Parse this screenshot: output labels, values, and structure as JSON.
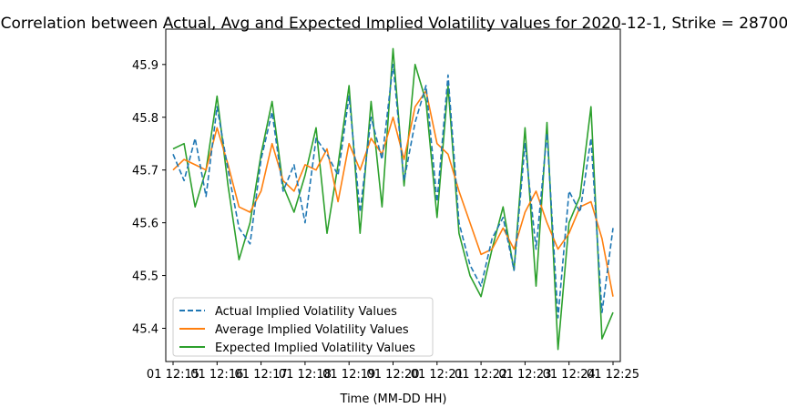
{
  "chart_data": {
    "type": "line",
    "title": "Correlation between Actual, Avg and Expected Implied Volatility values for 2020-12-1, Strike = 28700",
    "xlabel": "Time (MM-DD HH)",
    "ylabel": "",
    "x_tick_labels": [
      "01 12:15",
      "01 12:16",
      "01 12:17",
      "01 12:18",
      "01 12:19",
      "01 12:20",
      "01 12:21",
      "01 12:22",
      "01 12:23",
      "01 12:24",
      "01 12:25"
    ],
    "xlim": [
      "2020-12-01 12:15",
      "2020-12-01 12:25"
    ],
    "ylim": [
      45.337,
      45.967
    ],
    "y_ticks": [
      45.4,
      45.5,
      45.6,
      45.7,
      45.8,
      45.9
    ],
    "grid": false,
    "legend": {
      "position": "lower-left"
    },
    "series": [
      {
        "name": "Actual Implied Volatility Values",
        "color": "#1f77b4",
        "style": "dashed",
        "x": [
          "2020-12-01 12:15",
          "2020-12-01 12:15:15",
          "2020-12-01 12:15:30",
          "2020-12-01 12:15:45",
          "2020-12-01 12:16",
          "2020-12-01 12:16:15",
          "2020-12-01 12:16:30",
          "2020-12-01 12:16:45",
          "2020-12-01 12:17",
          "2020-12-01 12:17:15",
          "2020-12-01 12:17:30",
          "2020-12-01 12:17:45",
          "2020-12-01 12:18",
          "2020-12-01 12:18:15",
          "2020-12-01 12:18:30",
          "2020-12-01 12:18:45",
          "2020-12-01 12:19",
          "2020-12-01 12:19:15",
          "2020-12-01 12:19:30",
          "2020-12-01 12:19:45",
          "2020-12-01 12:20",
          "2020-12-01 12:20:15",
          "2020-12-01 12:20:30",
          "2020-12-01 12:20:45",
          "2020-12-01 12:21",
          "2020-12-01 12:21:15",
          "2020-12-01 12:21:30",
          "2020-12-01 12:21:45",
          "2020-12-01 12:22",
          "2020-12-01 12:22:15",
          "2020-12-01 12:22:30",
          "2020-12-01 12:22:45",
          "2020-12-01 12:23",
          "2020-12-01 12:23:15",
          "2020-12-01 12:23:30",
          "2020-12-01 12:23:45",
          "2020-12-01 12:24",
          "2020-12-01 12:24:15",
          "2020-12-01 12:24:30",
          "2020-12-01 12:24:45",
          "2020-12-01 12:25"
        ],
        "y": [
          45.73,
          45.68,
          45.76,
          45.65,
          45.82,
          45.7,
          45.59,
          45.56,
          45.72,
          45.81,
          45.66,
          45.71,
          45.6,
          45.76,
          45.73,
          45.69,
          45.84,
          45.62,
          45.8,
          45.72,
          45.9,
          45.68,
          45.79,
          45.86,
          45.64,
          45.88,
          45.6,
          45.52,
          45.48,
          45.57,
          45.61,
          45.51,
          45.75,
          45.55,
          45.77,
          45.42,
          45.66,
          45.62,
          45.76,
          45.43,
          45.59
        ]
      },
      {
        "name": "Average Implied Volatility Values",
        "color": "#ff7f0e",
        "style": "solid",
        "x": [
          "2020-12-01 12:15",
          "2020-12-01 12:15:15",
          "2020-12-01 12:15:30",
          "2020-12-01 12:15:45",
          "2020-12-01 12:16",
          "2020-12-01 12:16:15",
          "2020-12-01 12:16:30",
          "2020-12-01 12:16:45",
          "2020-12-01 12:17",
          "2020-12-01 12:17:15",
          "2020-12-01 12:17:30",
          "2020-12-01 12:17:45",
          "2020-12-01 12:18",
          "2020-12-01 12:18:15",
          "2020-12-01 12:18:30",
          "2020-12-01 12:18:45",
          "2020-12-01 12:19",
          "2020-12-01 12:19:15",
          "2020-12-01 12:19:30",
          "2020-12-01 12:19:45",
          "2020-12-01 12:20",
          "2020-12-01 12:20:15",
          "2020-12-01 12:20:30",
          "2020-12-01 12:20:45",
          "2020-12-01 12:21",
          "2020-12-01 12:21:15",
          "2020-12-01 12:21:30",
          "2020-12-01 12:21:45",
          "2020-12-01 12:22",
          "2020-12-01 12:22:15",
          "2020-12-01 12:22:30",
          "2020-12-01 12:22:45",
          "2020-12-01 12:23",
          "2020-12-01 12:23:15",
          "2020-12-01 12:23:30",
          "2020-12-01 12:23:45",
          "2020-12-01 12:24",
          "2020-12-01 12:24:15",
          "2020-12-01 12:24:30",
          "2020-12-01 12:24:45",
          "2020-12-01 12:25"
        ],
        "y": [
          45.7,
          45.72,
          45.71,
          45.7,
          45.78,
          45.71,
          45.63,
          45.62,
          45.66,
          45.75,
          45.68,
          45.66,
          45.71,
          45.7,
          45.74,
          45.64,
          45.75,
          45.7,
          45.76,
          45.73,
          45.8,
          45.72,
          45.82,
          45.85,
          45.75,
          45.73,
          45.66,
          45.6,
          45.54,
          45.55,
          45.59,
          45.55,
          45.62,
          45.66,
          45.6,
          45.55,
          45.58,
          45.63,
          45.64,
          45.57,
          45.46
        ]
      },
      {
        "name": "Expected Implied Volatility Values",
        "color": "#2ca02c",
        "style": "solid",
        "x": [
          "2020-12-01 12:15",
          "2020-12-01 12:15:15",
          "2020-12-01 12:15:30",
          "2020-12-01 12:15:45",
          "2020-12-01 12:16",
          "2020-12-01 12:16:15",
          "2020-12-01 12:16:30",
          "2020-12-01 12:16:45",
          "2020-12-01 12:17",
          "2020-12-01 12:17:15",
          "2020-12-01 12:17:30",
          "2020-12-01 12:17:45",
          "2020-12-01 12:18",
          "2020-12-01 12:18:15",
          "2020-12-01 12:18:30",
          "2020-12-01 12:18:45",
          "2020-12-01 12:19",
          "2020-12-01 12:19:15",
          "2020-12-01 12:19:30",
          "2020-12-01 12:19:45",
          "2020-12-01 12:20",
          "2020-12-01 12:20:15",
          "2020-12-01 12:20:30",
          "2020-12-01 12:20:45",
          "2020-12-01 12:21",
          "2020-12-01 12:21:15",
          "2020-12-01 12:21:30",
          "2020-12-01 12:21:45",
          "2020-12-01 12:22",
          "2020-12-01 12:22:15",
          "2020-12-01 12:22:30",
          "2020-12-01 12:22:45",
          "2020-12-01 12:23",
          "2020-12-01 12:23:15",
          "2020-12-01 12:23:30",
          "2020-12-01 12:23:45",
          "2020-12-01 12:24",
          "2020-12-01 12:24:15",
          "2020-12-01 12:24:30",
          "2020-12-01 12:24:45",
          "2020-12-01 12:25"
        ],
        "y": [
          45.74,
          45.75,
          45.63,
          45.7,
          45.84,
          45.67,
          45.53,
          45.6,
          45.73,
          45.83,
          45.67,
          45.62,
          45.69,
          45.78,
          45.58,
          45.71,
          45.86,
          45.58,
          45.83,
          45.63,
          45.93,
          45.67,
          45.9,
          45.83,
          45.61,
          45.86,
          45.58,
          45.5,
          45.46,
          45.55,
          45.63,
          45.51,
          45.78,
          45.48,
          45.79,
          45.36,
          45.6,
          45.65,
          45.82,
          45.38,
          45.43
        ]
      }
    ]
  }
}
